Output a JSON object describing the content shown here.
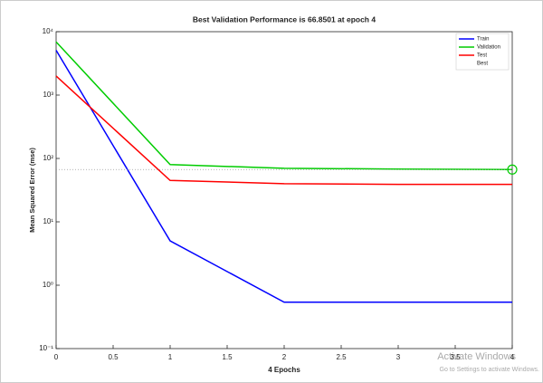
{
  "chart_data": {
    "type": "line",
    "title": "Best Validation Performance is 66.8501 at epoch 4",
    "xlabel": "4 Epochs",
    "ylabel": "Mean Squared Error  (mse)",
    "x": [
      0,
      1,
      2,
      3,
      4
    ],
    "series": [
      {
        "name": "Train",
        "color": "#0000ff",
        "values": [
          5100,
          5,
          0.54,
          0.54,
          0.54
        ]
      },
      {
        "name": "Validation",
        "color": "#00cc00",
        "values": [
          6900,
          80,
          70,
          68,
          66.8501
        ]
      },
      {
        "name": "Test",
        "color": "#ff0000",
        "values": [
          2000,
          45,
          40,
          39,
          39
        ]
      }
    ],
    "best": {
      "name": "Best",
      "x": 4,
      "value": 66.8501,
      "color": "#00cc00"
    },
    "xlim": [
      0,
      4
    ],
    "xticks": [
      0,
      0.5,
      1,
      1.5,
      2,
      2.5,
      3,
      3.5,
      4
    ],
    "ylim": [
      0.1,
      10000
    ],
    "yticks": [
      {
        "value": 0.1,
        "label": "10⁻¹"
      },
      {
        "value": 1,
        "label": "10⁰"
      },
      {
        "value": 10,
        "label": "10¹"
      },
      {
        "value": 100,
        "label": "10²"
      },
      {
        "value": 1000,
        "label": "10³"
      },
      {
        "value": 10000,
        "label": "10⁴"
      }
    ],
    "log_y": true,
    "legend": "upper right",
    "watermark": [
      "Activate Windows",
      "Go to Settings to activate Windows."
    ]
  }
}
